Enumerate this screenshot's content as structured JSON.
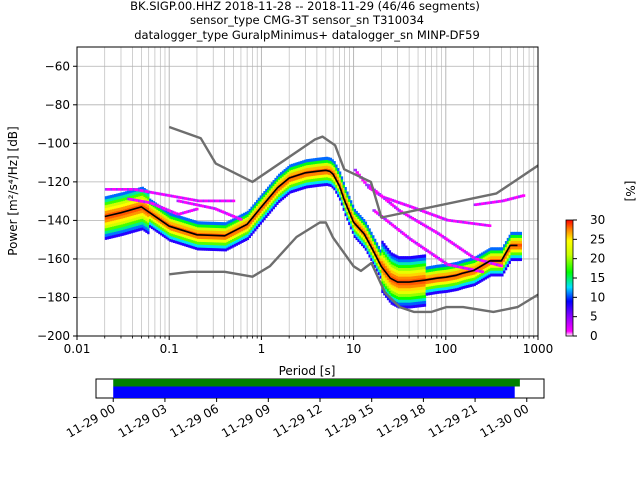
{
  "title": {
    "line1": "BK.SIGP.00.HHZ   2018-11-28 -- 2018-11-29  (46/46 segments)",
    "line2": "sensor_type CMG-3T sensor_sn T310034",
    "line3": "datalogger_type GuralpMinimus+ datalogger_sn MINP-DF59"
  },
  "chart_data": [
    {
      "type": "heatmap",
      "xlabel": "Period [s]",
      "ylabel": "Power [m²/s⁴/Hz] [dB]",
      "xscale": "log",
      "xlim": [
        0.01,
        1000
      ],
      "ylim": [
        -200,
        -50
      ],
      "xtick_labels": [
        "0.01",
        "0.1",
        "1",
        "10",
        "100",
        "1000"
      ],
      "ytick_labels": [
        "−60",
        "−80",
        "−100",
        "−120",
        "−140",
        "−160",
        "−180",
        "−200"
      ],
      "grid": true,
      "colorbar": {
        "label": "[%]",
        "range": [
          0,
          30
        ],
        "tick_labels": [
          "0",
          "5",
          "10",
          "15",
          "20",
          "25",
          "30"
        ],
        "colormap": "pqlx"
      },
      "series": [
        {
          "role": "high-noise-model",
          "color": "#6e6e6e",
          "x": [
            0.1,
            0.22,
            0.32,
            0.8,
            3.8,
            4.6,
            6.3,
            7.9,
            15.4,
            20,
            354.8,
            1000
          ],
          "y": [
            -91.5,
            -97.4,
            -110.5,
            -120,
            -98,
            -96.5,
            -101,
            -113.5,
            -120,
            -138.5,
            -126,
            -111.5
          ]
        },
        {
          "role": "low-noise-model",
          "color": "#6e6e6e",
          "x": [
            0.1,
            0.17,
            0.4,
            0.8,
            1.24,
            2.4,
            4.3,
            5,
            6,
            10,
            12,
            15.6,
            21.9,
            31.6,
            45,
            70,
            101,
            154,
            328,
            600,
            1000
          ],
          "y": [
            -168,
            -166.7,
            -166.7,
            -169.2,
            -163.7,
            -148.6,
            -141.1,
            -141.1,
            -149,
            -163.8,
            -166.2,
            -162.1,
            -177.5,
            -185,
            -187.5,
            -187.5,
            -185,
            -185,
            -187.5,
            -185,
            -178.5
          ]
        },
        {
          "role": "mode",
          "color": "#000000",
          "x": [
            0.02,
            0.03,
            0.05,
            0.1,
            0.2,
            0.4,
            0.7,
            1,
            1.5,
            2,
            3,
            4,
            5,
            5.5,
            6,
            7,
            8,
            10,
            13,
            16,
            20,
            25,
            30,
            40,
            60,
            80,
            100,
            130,
            150,
            200,
            300,
            400,
            500,
            600
          ],
          "y": [
            -138,
            -136,
            -133,
            -143,
            -147.5,
            -148,
            -142,
            -133,
            -123,
            -118,
            -115.3,
            -114.5,
            -114,
            -114.5,
            -116,
            -122,
            -130,
            -141,
            -147,
            -155,
            -164,
            -170,
            -172,
            -172,
            -171,
            -170,
            -169.5,
            -168.5,
            -167.5,
            -166,
            -161,
            -161,
            -153,
            -153
          ]
        }
      ]
    },
    {
      "type": "timeline",
      "xtick_labels": [
        "11-29 00",
        "11-29 03",
        "11-29 06",
        "11-29 09",
        "11-29 12",
        "11-29 15",
        "11-29 18",
        "11-29 21",
        "11-30 00"
      ],
      "xlim_hours": [
        -1,
        25
      ],
      "bars": [
        {
          "role": "data-coverage",
          "color": "#008000",
          "start_hour": 0,
          "end_hour": 23.6
        },
        {
          "role": "psd-segments",
          "color": "#0000ff",
          "start_hour": 0,
          "end_hour": 23.3
        }
      ]
    }
  ]
}
